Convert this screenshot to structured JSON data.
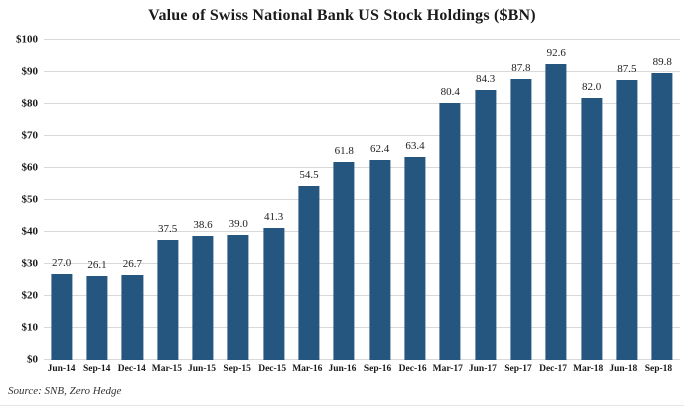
{
  "chart_data": {
    "type": "bar",
    "title": "Value of Swiss National Bank US Stock Holdings ($BN)",
    "categories": [
      "Jun-14",
      "Sep-14",
      "Dec-14",
      "Mar-15",
      "Jun-15",
      "Sep-15",
      "Dec-15",
      "Mar-16",
      "Jun-16",
      "Sep-16",
      "Dec-16",
      "Mar-17",
      "Jun-17",
      "Sep-17",
      "Dec-17",
      "Mar-18",
      "Jun-18",
      "Sep-18"
    ],
    "values": [
      27.0,
      26.1,
      26.7,
      37.5,
      38.6,
      39.0,
      41.3,
      54.5,
      61.8,
      62.4,
      63.4,
      80.4,
      84.3,
      87.8,
      92.6,
      82.0,
      87.5,
      89.8
    ],
    "value_labels": [
      "27.0",
      "26.1",
      "26.7",
      "37.5",
      "38.6",
      "39.0",
      "41.3",
      "54.5",
      "61.8",
      "62.4",
      "63.4",
      "80.4",
      "84.3",
      "87.8",
      "92.6",
      "82.0",
      "87.5",
      "89.8"
    ],
    "xlabel": "",
    "ylabel": "",
    "ylim": [
      0,
      100
    ],
    "ytick_step": 10,
    "ytick_prefix": "$",
    "grid": true,
    "legend": "none",
    "bar_color": "#25567F",
    "gridline_color": "#D9D9D9"
  },
  "footer": {
    "source": "Source: SNB, Zero Hedge"
  }
}
